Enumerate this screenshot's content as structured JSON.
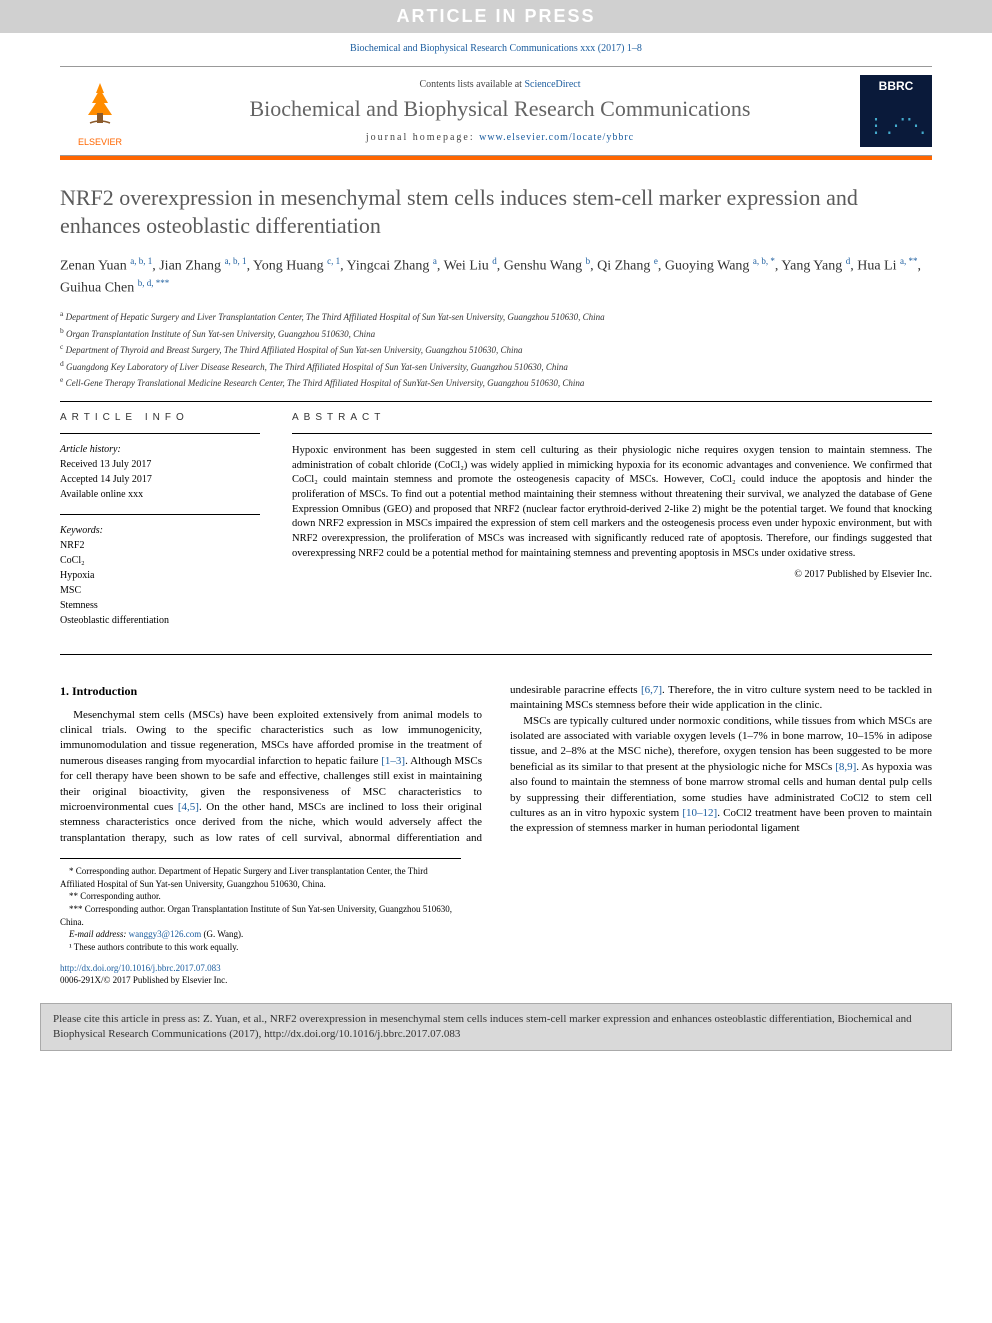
{
  "banner": "ARTICLE IN PRESS",
  "top_citation": "Biochemical and Biophysical Research Communications xxx (2017) 1–8",
  "header": {
    "contents_prefix": "Contents lists available at ",
    "contents_link": "ScienceDirect",
    "journal_name": "Biochemical and Biophysical Research Communications",
    "homepage_prefix": "journal homepage: ",
    "homepage_url": "www.elsevier.com/locate/ybbrc",
    "publisher": "ELSEVIER",
    "cover_abbrev": "BBRC"
  },
  "title": "NRF2 overexpression in mesenchymal stem cells induces stem-cell marker expression and enhances osteoblastic differentiation",
  "authors_html": "Zenan Yuan <sup>a, b, 1</sup>, Jian Zhang <sup>a, b, 1</sup>, Yong Huang <sup>c, 1</sup>, Yingcai Zhang <sup>a</sup>, Wei Liu <sup>d</sup>, Genshu Wang <sup>b</sup>, Qi Zhang <sup>e</sup>, Guoying Wang <sup>a, b, *</sup>, Yang Yang <sup>d</sup>, Hua Li <sup>a, **</sup>, Guihua Chen <sup>b, d, ***</sup>",
  "affiliations": [
    {
      "key": "a",
      "text": "Department of Hepatic Surgery and Liver Transplantation Center, The Third Affiliated Hospital of Sun Yat-sen University, Guangzhou 510630, China"
    },
    {
      "key": "b",
      "text": "Organ Transplantation Institute of Sun Yat-sen University, Guangzhou 510630, China"
    },
    {
      "key": "c",
      "text": "Department of Thyroid and Breast Surgery, The Third Affiliated Hospital of Sun Yat-sen University, Guangzhou 510630, China"
    },
    {
      "key": "d",
      "text": "Guangdong Key Laboratory of Liver Disease Research, The Third Affiliated Hospital of Sun Yat-sen University, Guangzhou 510630, China"
    },
    {
      "key": "e",
      "text": "Cell-Gene Therapy Translational Medicine Research Center, The Third Affiliated Hospital of SunYat-Sen University, Guangzhou 510630, China"
    }
  ],
  "article_info": {
    "heading": "ARTICLE INFO",
    "history_label": "Article history:",
    "received": "Received 13 July 2017",
    "accepted": "Accepted 14 July 2017",
    "online": "Available online xxx",
    "keywords_label": "Keywords:",
    "keywords": [
      "NRF2",
      "CoCl₂",
      "Hypoxia",
      "MSC",
      "Stemness",
      "Osteoblastic differentiation"
    ]
  },
  "abstract": {
    "heading": "ABSTRACT",
    "text": "Hypoxic environment has been suggested in stem cell culturing as their physiologic niche requires oxygen tension to maintain stemness. The administration of cobalt chloride (CoCl₂) was widely applied in mimicking hypoxia for its economic advantages and convenience. We confirmed that CoCl₂ could maintain stemness and promote the osteogenesis capacity of MSCs. However, CoCl₂ could induce the apoptosis and hinder the proliferation of MSCs. To find out a potential method maintaining their stemness without threatening their survival, we analyzed the database of Gene Expression Omnibus (GEO) and proposed that NRF2 (nuclear factor erythroid-derived 2-like 2) might be the potential target. We found that knocking down NRF2 expression in MSCs impaired the expression of stem cell markers and the osteogenesis process even under hypoxic environment, but with NRF2 overexpression, the proliferation of MSCs was increased with significantly reduced rate of apoptosis. Therefore, our findings suggested that overexpressing NRF2 could be a potential method for maintaining stemness and preventing apoptosis in MSCs under oxidative stress.",
    "copyright": "© 2017 Published by Elsevier Inc."
  },
  "intro_heading": "1. Introduction",
  "body": {
    "p1a": "Mesenchymal stem cells (MSCs) have been exploited extensively from animal models to clinical trials. Owing to the specific characteristics such as low immunogenicity, immunomodulation and tissue regeneration, MSCs have afforded promise in the treatment of numerous diseases ranging from myocardial infarction to hepatic failure ",
    "p1_ref1": "[1–3]",
    "p1b": ". Although MSCs for cell therapy have been shown to be safe and effective, challenges still exist in maintaining their original bioactivity, given the responsiveness of MSC ",
    "p1c": "characteristics to microenvironmental cues ",
    "p1_ref2": "[4,5]",
    "p1d": ". On the other hand, MSCs are inclined to loss their original stemness characteristics once derived from the niche, which would adversely affect the transplantation therapy, such as low rates of cell survival, abnormal differentiation and undesirable paracrine effects ",
    "p1_ref3": "[6,7]",
    "p1e": ". Therefore, the in vitro culture system need to be tackled in maintaining MSCs stemness before their wide application in the clinic.",
    "p2a": "MSCs are typically cultured under normoxic conditions, while tissues from which MSCs are isolated are associated with variable oxygen levels (1–7% in bone marrow, 10–15% in adipose tissue, and 2–8% at the MSC niche), therefore, oxygen tension has been suggested to be more beneficial as its similar to that present at the physiologic niche for MSCs ",
    "p2_ref1": "[8,9]",
    "p2b": ". As hypoxia was also found to maintain the stemness of bone marrow stromal cells and human dental pulp cells by suppressing their differentiation, some studies have administrated CoCl2 to stem cell cultures as an in vitro hypoxic system ",
    "p2_ref2": "[10–12]",
    "p2c": ". CoCl2 treatment have been proven to maintain the expression of stemness marker in human periodontal ligament"
  },
  "footnotes": {
    "f1": "* Corresponding author. Department of Hepatic Surgery and Liver transplantation Center, the Third Affiliated Hospital of Sun Yat-sen University, Guangzhou 510630, China.",
    "f2": "** Corresponding author.",
    "f3": "*** Corresponding author. Organ Transplantation Institute of Sun Yat-sen University, Guangzhou 510630, China.",
    "email_label": "E-mail address: ",
    "email": "wanggy3@126.com",
    "email_who": " (G. Wang).",
    "f4": "¹ These authors contribute to this work equally."
  },
  "doi": {
    "url": "http://dx.doi.org/10.1016/j.bbrc.2017.07.083",
    "issn_line": "0006-291X/© 2017 Published by Elsevier Inc."
  },
  "cite_footer": "Please cite this article in press as: Z. Yuan, et al., NRF2 overexpression in mesenchymal stem cells induces stem-cell marker expression and enhances osteoblastic differentiation, Biochemical and Biophysical Research Communications (2017), http://dx.doi.org/10.1016/j.bbrc.2017.07.083"
}
